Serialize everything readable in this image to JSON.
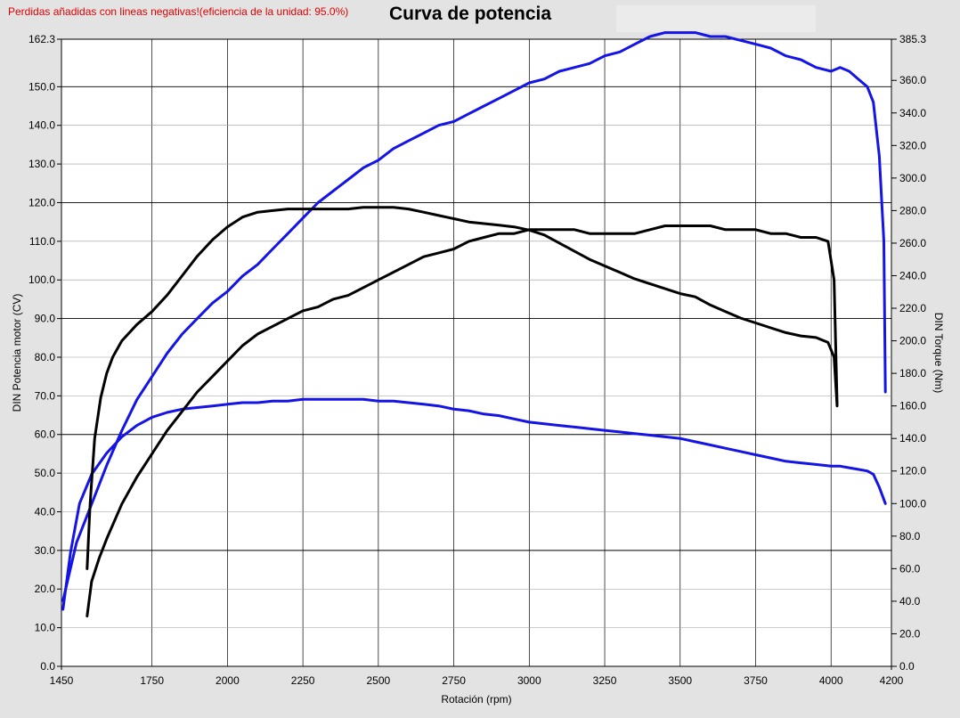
{
  "notice": "Perdidas añadidas con lineas negativas!(eficiencia de la unidad: 95.0%)",
  "colors": {
    "notice": "#e00000",
    "blue_series": "#1414e6",
    "black_series": "#000000",
    "plot_bg": "#ffffff",
    "page_bg": "#e3e3e3"
  },
  "chart_data": {
    "type": "line",
    "title": "Curva de potencia",
    "xlabel": "Rotación (rpm)",
    "ylabel_left": "DIN Potencia motor (CV)",
    "ylabel_right": "DIN Torque (Nm)",
    "xlim": [
      1450,
      4200
    ],
    "ylim_left": [
      0,
      162.3
    ],
    "ylim_right": [
      0,
      385.3
    ],
    "x_ticks": [
      "1450",
      "1750",
      "2000",
      "2250",
      "2500",
      "2750",
      "3000",
      "3250",
      "3500",
      "3750",
      "4000",
      "4200"
    ],
    "y_ticks_left": [
      "0.0",
      "10.0",
      "20.0",
      "30.0",
      "40.0",
      "50.0",
      "60.0",
      "70.0",
      "80.0",
      "90.0",
      "100.0",
      "110.0",
      "120.0",
      "130.0",
      "140.0",
      "150.0",
      "162.3"
    ],
    "y_ticks_right": [
      "0.0",
      "20.0",
      "40.0",
      "60.0",
      "80.0",
      "100.0",
      "120.0",
      "140.0",
      "160.0",
      "180.0",
      "200.0",
      "220.0",
      "240.0",
      "260.0",
      "280.0",
      "300.0",
      "320.0",
      "340.0",
      "360.0",
      "385.3"
    ],
    "grid": true,
    "series": [
      {
        "color": "#1414e6",
        "axis": "left",
        "x": [
          1455,
          1500,
          1550,
          1600,
          1650,
          1700,
          1750,
          1800,
          1850,
          1900,
          1950,
          2000,
          2050,
          2100,
          2150,
          2200,
          2250,
          2300,
          2350,
          2400,
          2450,
          2500,
          2550,
          2600,
          2650,
          2700,
          2750,
          2800,
          2850,
          2900,
          2950,
          3000,
          3050,
          3100,
          3150,
          3200,
          3250,
          3300,
          3350,
          3400,
          3450,
          3500,
          3550,
          3600,
          3650,
          3700,
          3750,
          3800,
          3850,
          3900,
          3950,
          4000,
          4030,
          4060,
          4090,
          4120,
          4140,
          4160,
          4175,
          4180
        ],
        "y": [
          17,
          32,
          42,
          52,
          61,
          69,
          75,
          81,
          86,
          90,
          94,
          97,
          101,
          104,
          108,
          112,
          116,
          120,
          123,
          126,
          129,
          131,
          134,
          136,
          138,
          140,
          141,
          143,
          145,
          147,
          149,
          151,
          152,
          154,
          155,
          156,
          158,
          159,
          161,
          163,
          164,
          164,
          164,
          163,
          163,
          162,
          161,
          160,
          158,
          157,
          155,
          154,
          155,
          154,
          152,
          150,
          146,
          132,
          110,
          71
        ]
      },
      {
        "color": "#1414e6",
        "axis": "right",
        "x": [
          1455,
          1480,
          1510,
          1550,
          1600,
          1650,
          1700,
          1750,
          1800,
          1850,
          1900,
          1950,
          2000,
          2050,
          2100,
          2150,
          2200,
          2250,
          2300,
          2350,
          2400,
          2450,
          2500,
          2550,
          2600,
          2650,
          2700,
          2750,
          2800,
          2850,
          2900,
          2950,
          3000,
          3050,
          3100,
          3150,
          3200,
          3250,
          3300,
          3350,
          3400,
          3450,
          3500,
          3550,
          3600,
          3650,
          3700,
          3750,
          3800,
          3850,
          3900,
          3950,
          4000,
          4030,
          4060,
          4090,
          4120,
          4140,
          4160,
          4180
        ],
        "y": [
          35,
          70,
          100,
          118,
          131,
          141,
          148,
          153,
          156,
          158,
          159,
          160,
          161,
          162,
          162,
          163,
          163,
          164,
          164,
          164,
          164,
          164,
          163,
          163,
          162,
          161,
          160,
          158,
          157,
          155,
          154,
          152,
          150,
          149,
          148,
          147,
          146,
          145,
          144,
          143,
          142,
          141,
          140,
          138,
          136,
          134,
          132,
          130,
          128,
          126,
          125,
          124,
          123,
          123,
          122,
          121,
          120,
          118,
          110,
          100
        ]
      },
      {
        "color": "#000000",
        "axis": "left",
        "x": [
          1535,
          1550,
          1575,
          1600,
          1650,
          1700,
          1750,
          1800,
          1850,
          1900,
          1950,
          2000,
          2050,
          2100,
          2150,
          2200,
          2250,
          2300,
          2350,
          2400,
          2450,
          2500,
          2550,
          2600,
          2650,
          2700,
          2750,
          2800,
          2850,
          2900,
          2950,
          3000,
          3050,
          3100,
          3150,
          3200,
          3250,
          3300,
          3350,
          3400,
          3450,
          3500,
          3550,
          3600,
          3650,
          3700,
          3750,
          3800,
          3850,
          3900,
          3950,
          3990,
          4010,
          4020
        ],
        "y": [
          13,
          22,
          28,
          33,
          42,
          49,
          55,
          61,
          66,
          71,
          75,
          79,
          83,
          86,
          88,
          90,
          92,
          93,
          95,
          96,
          98,
          100,
          102,
          104,
          106,
          107,
          108,
          110,
          111,
          112,
          112,
          113,
          113,
          113,
          113,
          112,
          112,
          112,
          112,
          113,
          114,
          114,
          114,
          114,
          113,
          113,
          113,
          112,
          112,
          111,
          111,
          110,
          100,
          68
        ]
      },
      {
        "color": "#000000",
        "axis": "right",
        "x": [
          1535,
          1545,
          1560,
          1580,
          1600,
          1620,
          1650,
          1700,
          1750,
          1800,
          1850,
          1900,
          1950,
          2000,
          2050,
          2100,
          2150,
          2200,
          2250,
          2300,
          2350,
          2400,
          2450,
          2500,
          2550,
          2600,
          2650,
          2700,
          2750,
          2800,
          2850,
          2900,
          2950,
          3000,
          3050,
          3100,
          3150,
          3200,
          3250,
          3300,
          3350,
          3400,
          3450,
          3500,
          3550,
          3600,
          3650,
          3700,
          3750,
          3800,
          3850,
          3900,
          3950,
          3990,
          4010,
          4020
        ],
        "y": [
          60,
          100,
          140,
          165,
          180,
          190,
          200,
          210,
          218,
          228,
          240,
          252,
          262,
          270,
          276,
          279,
          280,
          281,
          281,
          281,
          281,
          281,
          282,
          282,
          282,
          281,
          279,
          277,
          275,
          273,
          272,
          271,
          270,
          268,
          265,
          260,
          255,
          250,
          246,
          242,
          238,
          235,
          232,
          229,
          227,
          222,
          218,
          214,
          211,
          208,
          205,
          203,
          202,
          199,
          190,
          160
        ]
      }
    ]
  }
}
